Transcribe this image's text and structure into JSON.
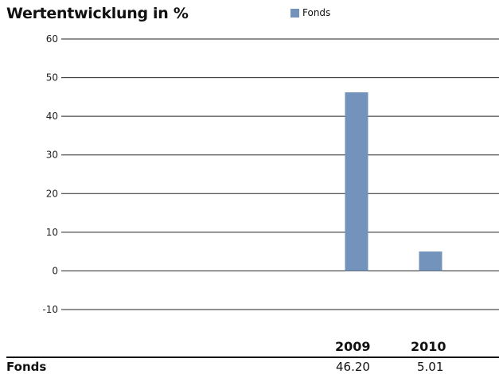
{
  "chart_data": {
    "type": "bar",
    "title": "Wertentwicklung in %",
    "legend": {
      "placement": "top",
      "entries": [
        "Fonds"
      ]
    },
    "categories": [
      "2009",
      "2010"
    ],
    "series": [
      {
        "name": "Fonds",
        "values": [
          46.2,
          5.01
        ],
        "color": "#7393bc"
      }
    ],
    "ylim": [
      -10,
      60
    ],
    "yticks": [
      60,
      50,
      40,
      30,
      20,
      10,
      0,
      -10
    ],
    "grid": true
  },
  "table": {
    "headers": [
      "2009",
      "2010"
    ],
    "rows": [
      {
        "label": "Fonds",
        "values": [
          "46.20",
          "5.01"
        ]
      }
    ]
  }
}
